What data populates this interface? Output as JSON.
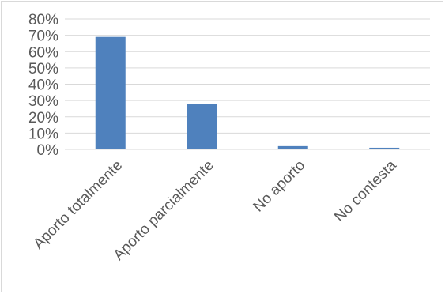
{
  "chart_data": {
    "type": "bar",
    "categories": [
      "Aporto totalmente",
      "Aporto parcialmente",
      "No aporto",
      "No contesta"
    ],
    "values": [
      69,
      28,
      2,
      1
    ],
    "title": "",
    "xlabel": "",
    "ylabel": "",
    "ylim": [
      0,
      80
    ],
    "yticks": [
      "0%",
      "10%",
      "20%",
      "30%",
      "40%",
      "50%",
      "60%",
      "70%",
      "80%"
    ],
    "grid": true,
    "bar_color": "#4f81bd",
    "grid_color": "#d9d9d9"
  }
}
